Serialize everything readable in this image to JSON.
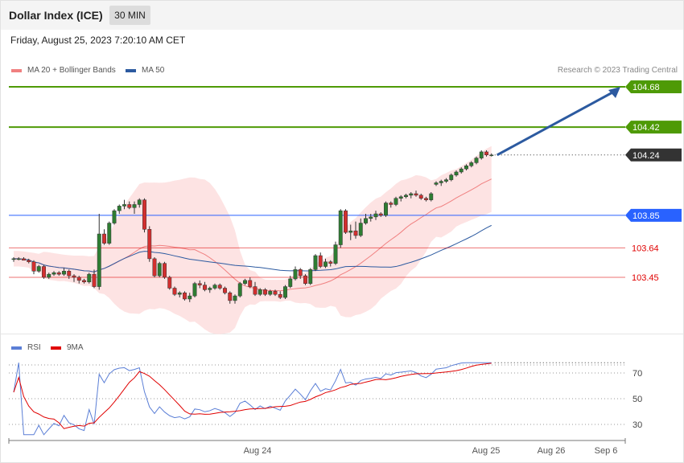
{
  "header": {
    "title": "Dollar Index (ICE)",
    "timeframe": "30 MIN"
  },
  "datetime": "Friday, August 25, 2023 7:20:10 AM CET",
  "legend": {
    "bollinger": {
      "label": "MA 20 + Bollinger Bands",
      "color": "#f08080"
    },
    "ma50": {
      "label": "MA 50",
      "color": "#2c5aa0"
    },
    "rsi": {
      "label": "RSI",
      "color": "#5b7fd6"
    },
    "rsi_ma": {
      "label": "9MA",
      "color": "#e00000"
    }
  },
  "credit": "Research © 2023 Trading Central",
  "chart_data": [
    {
      "type": "candlestick",
      "price_range": [
        103.14,
        104.76
      ],
      "levels": [
        {
          "label": "104.68",
          "value": 104.68,
          "kind": "target",
          "color": "#4e9a06"
        },
        {
          "label": "104.42",
          "value": 104.42,
          "kind": "target",
          "color": "#4e9a06"
        },
        {
          "label": "104.24",
          "value": 104.24,
          "kind": "last",
          "color": "#333333"
        },
        {
          "label": "103.85",
          "value": 103.85,
          "kind": "pivot",
          "color": "#2962ff"
        },
        {
          "label": "103.64",
          "value": 103.64,
          "kind": "support",
          "color": "#e00000"
        },
        {
          "label": "103.45",
          "value": 103.45,
          "kind": "support",
          "color": "#e00000"
        }
      ],
      "x_labels": [
        "Aug 24",
        "Aug 25",
        "Aug 26",
        "Sep 6"
      ],
      "candles": [
        [
          103.57,
          103.58,
          103.55,
          103.57
        ],
        [
          103.57,
          103.58,
          103.56,
          103.57
        ],
        [
          103.57,
          103.58,
          103.56,
          103.56
        ],
        [
          103.56,
          103.57,
          103.54,
          103.55
        ],
        [
          103.55,
          103.56,
          103.47,
          103.49
        ],
        [
          103.49,
          103.53,
          103.48,
          103.52
        ],
        [
          103.52,
          103.53,
          103.44,
          103.45
        ],
        [
          103.45,
          103.48,
          103.44,
          103.47
        ],
        [
          103.47,
          103.49,
          103.46,
          103.48
        ],
        [
          103.48,
          103.49,
          103.46,
          103.47
        ],
        [
          103.47,
          103.51,
          103.46,
          103.49
        ],
        [
          103.49,
          103.5,
          103.44,
          103.46
        ],
        [
          103.46,
          103.47,
          103.42,
          103.45
        ],
        [
          103.45,
          103.46,
          103.41,
          103.43
        ],
        [
          103.43,
          103.44,
          103.41,
          103.42
        ],
        [
          103.42,
          103.48,
          103.41,
          103.47
        ],
        [
          103.47,
          103.5,
          103.38,
          103.39
        ],
        [
          103.39,
          103.86,
          103.37,
          103.73
        ],
        [
          103.73,
          103.76,
          103.66,
          103.67
        ],
        [
          103.67,
          103.81,
          103.66,
          103.8
        ],
        [
          103.8,
          103.89,
          103.79,
          103.88
        ],
        [
          103.88,
          103.92,
          103.86,
          103.91
        ],
        [
          103.91,
          103.95,
          103.89,
          103.92
        ],
        [
          103.92,
          103.94,
          103.89,
          103.9
        ],
        [
          103.9,
          103.94,
          103.86,
          103.92
        ],
        [
          103.92,
          103.96,
          103.9,
          103.95
        ],
        [
          103.95,
          103.96,
          103.74,
          103.76
        ],
        [
          103.76,
          103.78,
          103.55,
          103.57
        ],
        [
          103.57,
          103.58,
          103.45,
          103.46
        ],
        [
          103.46,
          103.55,
          103.45,
          103.54
        ],
        [
          103.54,
          103.55,
          103.44,
          103.45
        ],
        [
          103.45,
          103.46,
          103.37,
          103.38
        ],
        [
          103.38,
          103.39,
          103.33,
          103.34
        ],
        [
          103.34,
          103.36,
          103.32,
          103.35
        ],
        [
          103.35,
          103.36,
          103.3,
          103.31
        ],
        [
          103.31,
          103.35,
          103.29,
          103.33
        ],
        [
          103.33,
          103.42,
          103.32,
          103.41
        ],
        [
          103.41,
          103.43,
          103.38,
          103.4
        ],
        [
          103.4,
          103.42,
          103.36,
          103.37
        ],
        [
          103.37,
          103.39,
          103.35,
          103.38
        ],
        [
          103.38,
          103.41,
          103.37,
          103.4
        ],
        [
          103.4,
          103.41,
          103.37,
          103.38
        ],
        [
          103.38,
          103.39,
          103.34,
          103.35
        ],
        [
          103.35,
          103.36,
          103.28,
          103.3
        ],
        [
          103.3,
          103.34,
          103.28,
          103.33
        ],
        [
          103.33,
          103.42,
          103.32,
          103.41
        ],
        [
          103.41,
          103.44,
          103.4,
          103.43
        ],
        [
          103.43,
          103.45,
          103.38,
          103.39
        ],
        [
          103.39,
          103.42,
          103.33,
          103.34
        ],
        [
          103.34,
          103.38,
          103.33,
          103.37
        ],
        [
          103.37,
          103.38,
          103.33,
          103.34
        ],
        [
          103.34,
          103.37,
          103.33,
          103.36
        ],
        [
          103.36,
          103.37,
          103.33,
          103.34
        ],
        [
          103.34,
          103.36,
          103.31,
          103.32
        ],
        [
          103.32,
          103.4,
          103.31,
          103.39
        ],
        [
          103.39,
          103.46,
          103.38,
          103.44
        ],
        [
          103.44,
          103.52,
          103.43,
          103.5
        ],
        [
          103.5,
          103.51,
          103.44,
          103.46
        ],
        [
          103.46,
          103.47,
          103.4,
          103.41
        ],
        [
          103.41,
          103.51,
          103.4,
          103.5
        ],
        [
          103.5,
          103.6,
          103.49,
          103.59
        ],
        [
          103.59,
          103.61,
          103.51,
          103.52
        ],
        [
          103.52,
          103.57,
          103.51,
          103.55
        ],
        [
          103.55,
          103.56,
          103.52,
          103.54
        ],
        [
          103.54,
          103.68,
          103.53,
          103.66
        ],
        [
          103.66,
          103.89,
          103.64,
          103.88
        ],
        [
          103.88,
          103.89,
          103.73,
          103.74
        ],
        [
          103.74,
          103.79,
          103.69,
          103.75
        ],
        [
          103.75,
          103.81,
          103.7,
          103.72
        ],
        [
          103.72,
          103.83,
          103.71,
          103.8
        ],
        [
          103.8,
          103.86,
          103.79,
          103.83
        ],
        [
          103.83,
          103.86,
          103.81,
          103.84
        ],
        [
          103.84,
          103.88,
          103.82,
          103.86
        ],
        [
          103.86,
          103.87,
          103.84,
          103.85
        ],
        [
          103.85,
          103.94,
          103.84,
          103.93
        ],
        [
          103.93,
          103.94,
          103.9,
          103.92
        ],
        [
          103.92,
          103.97,
          103.91,
          103.96
        ],
        [
          103.96,
          103.98,
          103.94,
          103.97
        ],
        [
          103.97,
          103.99,
          103.96,
          103.98
        ],
        [
          103.98,
          104.0,
          103.96,
          103.99
        ],
        [
          103.99,
          104.01,
          103.97,
          103.98
        ],
        [
          103.98,
          103.99,
          103.95,
          103.96
        ],
        [
          103.96,
          103.97,
          103.94,
          103.95
        ],
        [
          103.95,
          104.0,
          103.94,
          103.99
        ],
        [
          104.05,
          104.07,
          104.04,
          104.06
        ],
        [
          104.06,
          104.08,
          104.04,
          104.07
        ],
        [
          104.07,
          104.09,
          104.06,
          104.08
        ],
        [
          104.08,
          104.12,
          104.07,
          104.11
        ],
        [
          104.11,
          104.14,
          104.1,
          104.13
        ],
        [
          104.13,
          104.16,
          104.12,
          104.15
        ],
        [
          104.15,
          104.18,
          104.14,
          104.17
        ],
        [
          104.17,
          104.2,
          104.16,
          104.19
        ],
        [
          104.19,
          104.23,
          104.18,
          104.22
        ],
        [
          104.22,
          104.27,
          104.21,
          104.26
        ],
        [
          104.26,
          104.27,
          104.23,
          104.24
        ],
        [
          104.24,
          104.25,
          104.23,
          104.24
        ]
      ],
      "arrow_to": 104.68
    },
    {
      "type": "line",
      "series_names": [
        "RSI",
        "9MA"
      ],
      "y_ticks": [
        30,
        50,
        70
      ],
      "ylim": [
        19,
        78
      ]
    }
  ]
}
